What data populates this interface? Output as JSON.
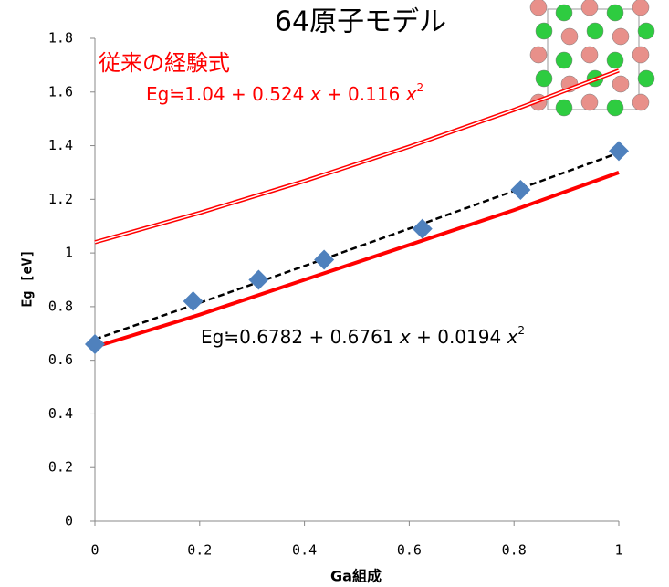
{
  "chart_data": {
    "type": "scatter",
    "title": "64原子モデル",
    "x_label": "Ga組成",
    "y_label": "Eg [eV]",
    "xlim": [
      0,
      1
    ],
    "xticks": [
      0,
      0.2,
      0.4,
      0.6,
      0.8,
      1
    ],
    "ylim": [
      0,
      1.8
    ],
    "yticks": [
      0,
      0.2,
      0.4,
      0.6,
      0.8,
      1,
      1.2,
      1.4,
      1.6,
      1.8
    ],
    "series": [
      {
        "type": "line",
        "style": "double",
        "color": "#ff0000",
        "x": [
          0,
          0.2,
          0.4,
          0.6,
          0.8,
          1
        ],
        "values": [
          1.04,
          1.1494,
          1.2682,
          1.3962,
          1.5334,
          1.68
        ]
      },
      {
        "type": "line",
        "style": "solid",
        "color": "#ff0000",
        "x": [
          0,
          0.2,
          0.4,
          0.6,
          0.8,
          1
        ],
        "values": [
          0.65,
          0.77,
          0.9,
          1.03,
          1.16,
          1.3
        ]
      },
      {
        "type": "line",
        "style": "dashed",
        "color": "#000000",
        "x": [
          0,
          0.2,
          0.4,
          0.6,
          0.8,
          1
        ],
        "values": [
          0.6782,
          0.8142,
          0.9517,
          1.0909,
          1.2315,
          1.3737
        ]
      },
      {
        "type": "scatter",
        "color": "#4f81bd",
        "x": [
          0,
          0.1875,
          0.3125,
          0.4375,
          0.625,
          0.8125,
          1
        ],
        "values": [
          0.66,
          0.82,
          0.9,
          0.975,
          1.09,
          1.235,
          1.38
        ]
      }
    ],
    "annotations": [
      {
        "text": "従来の経験式",
        "color": "#ff0000"
      },
      {
        "parts": [
          "Eg≒1.04 + 0.524 ",
          "x",
          " + 0.116 ",
          "x",
          "2"
        ],
        "color": "#ff0000"
      },
      {
        "parts": [
          "Eg≒0.6782 + 0.6761 ",
          "x",
          " + 0.0194 ",
          "x",
          "2"
        ],
        "color": "#000000"
      }
    ]
  }
}
